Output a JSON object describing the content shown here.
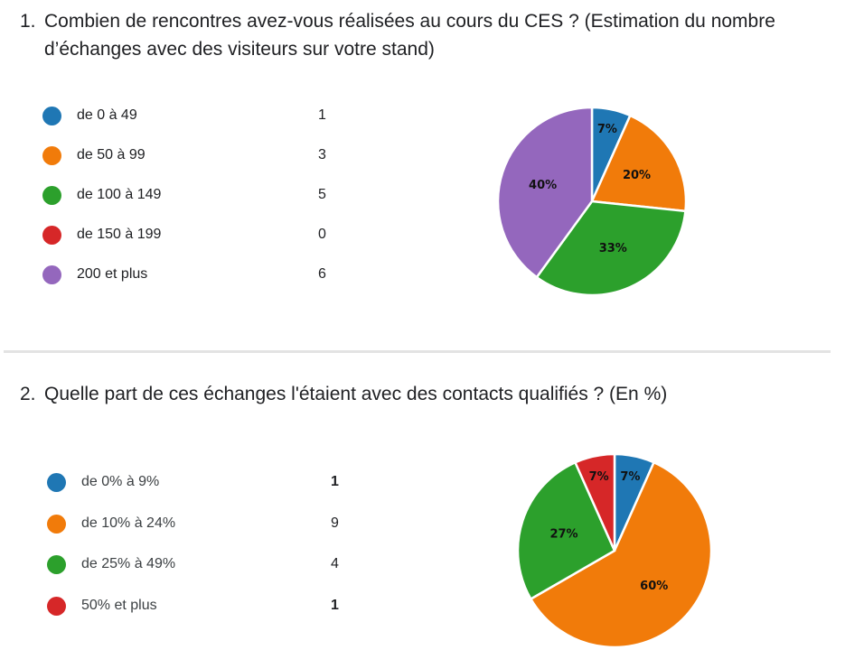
{
  "q1": {
    "number": "1.",
    "text": "Combien de rencontres avez-vous réalisées au cours du CES ? (Estimation du nombre d’échanges avec des visiteurs sur votre stand)"
  },
  "q2": {
    "number": "2.",
    "text": "Quelle part de ces échanges l'étaient avec des contacts qualifiés ? (En %)"
  },
  "chart_data": [
    {
      "type": "pie",
      "title": "",
      "categories": [
        "de 0 à 49",
        "de 50 à 99",
        "de 100 à 149",
        "de 150 à 199",
        "200 et plus"
      ],
      "values": [
        1,
        3,
        5,
        0,
        6
      ],
      "counts": [
        "1",
        "3",
        "5",
        "0",
        "6"
      ],
      "colors": [
        "#1f77b4",
        "#f17b0a",
        "#2ca02c",
        "#d62728",
        "#9467bd"
      ],
      "percent_labels": [
        "7%",
        "20%",
        "33%",
        "",
        "40%"
      ],
      "legend_position": "left"
    },
    {
      "type": "pie",
      "title": "",
      "categories": [
        "de 0% à 9%",
        "de 10% à 24%",
        "de 25% à 49%",
        "50% et plus"
      ],
      "values": [
        1,
        9,
        4,
        1
      ],
      "counts": [
        "1",
        "9",
        "4",
        "1"
      ],
      "colors": [
        "#1f77b4",
        "#f17b0a",
        "#2ca02c",
        "#d62728"
      ],
      "percent_labels": [
        "7%",
        "60%",
        "27%",
        "7%"
      ],
      "legend_position": "left"
    }
  ]
}
